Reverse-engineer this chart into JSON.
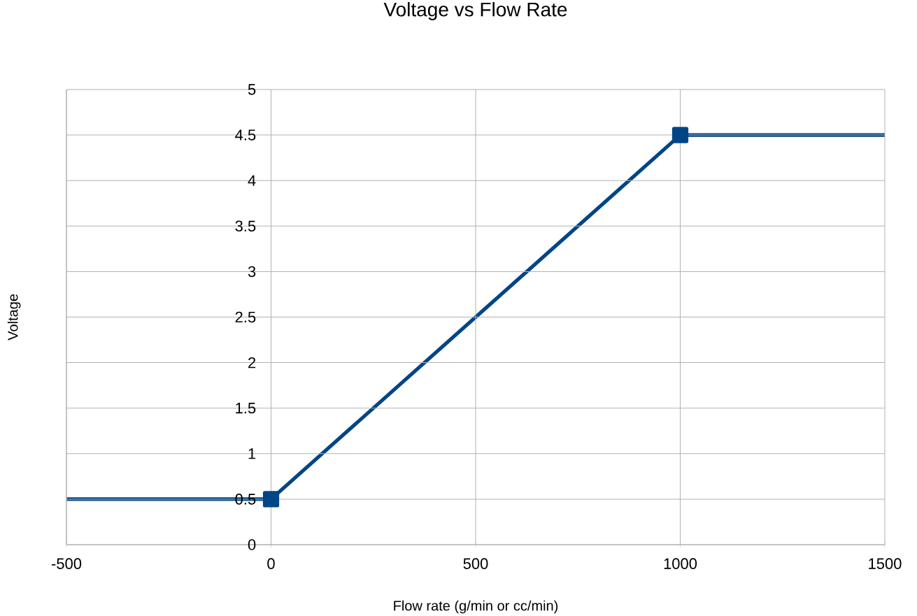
{
  "chart_data": {
    "type": "line",
    "title": "Voltage vs Flow Rate",
    "xlabel": "Flow rate (g/min or cc/min)",
    "ylabel": "Voltage",
    "xlim": [
      -500,
      1500
    ],
    "xticks": [
      -500,
      0,
      500,
      1000,
      1500
    ],
    "ylim": [
      0,
      5
    ],
    "yticks": [
      0,
      0.5,
      1,
      1.5,
      2,
      2.5,
      3,
      3.5,
      4,
      4.5,
      5
    ],
    "grid": true,
    "line_style": "solid",
    "series": [
      {
        "color": "#004586",
        "x": [
          -500,
          0
        ],
        "values": [
          0.5,
          0.5
        ]
      },
      {
        "color": "#004586",
        "x": [
          0,
          1000
        ],
        "values": [
          0.5,
          4.5
        ],
        "marker": "square"
      },
      {
        "color": "#004586",
        "x": [
          1000,
          1500
        ],
        "values": [
          4.5,
          4.5
        ]
      }
    ]
  }
}
